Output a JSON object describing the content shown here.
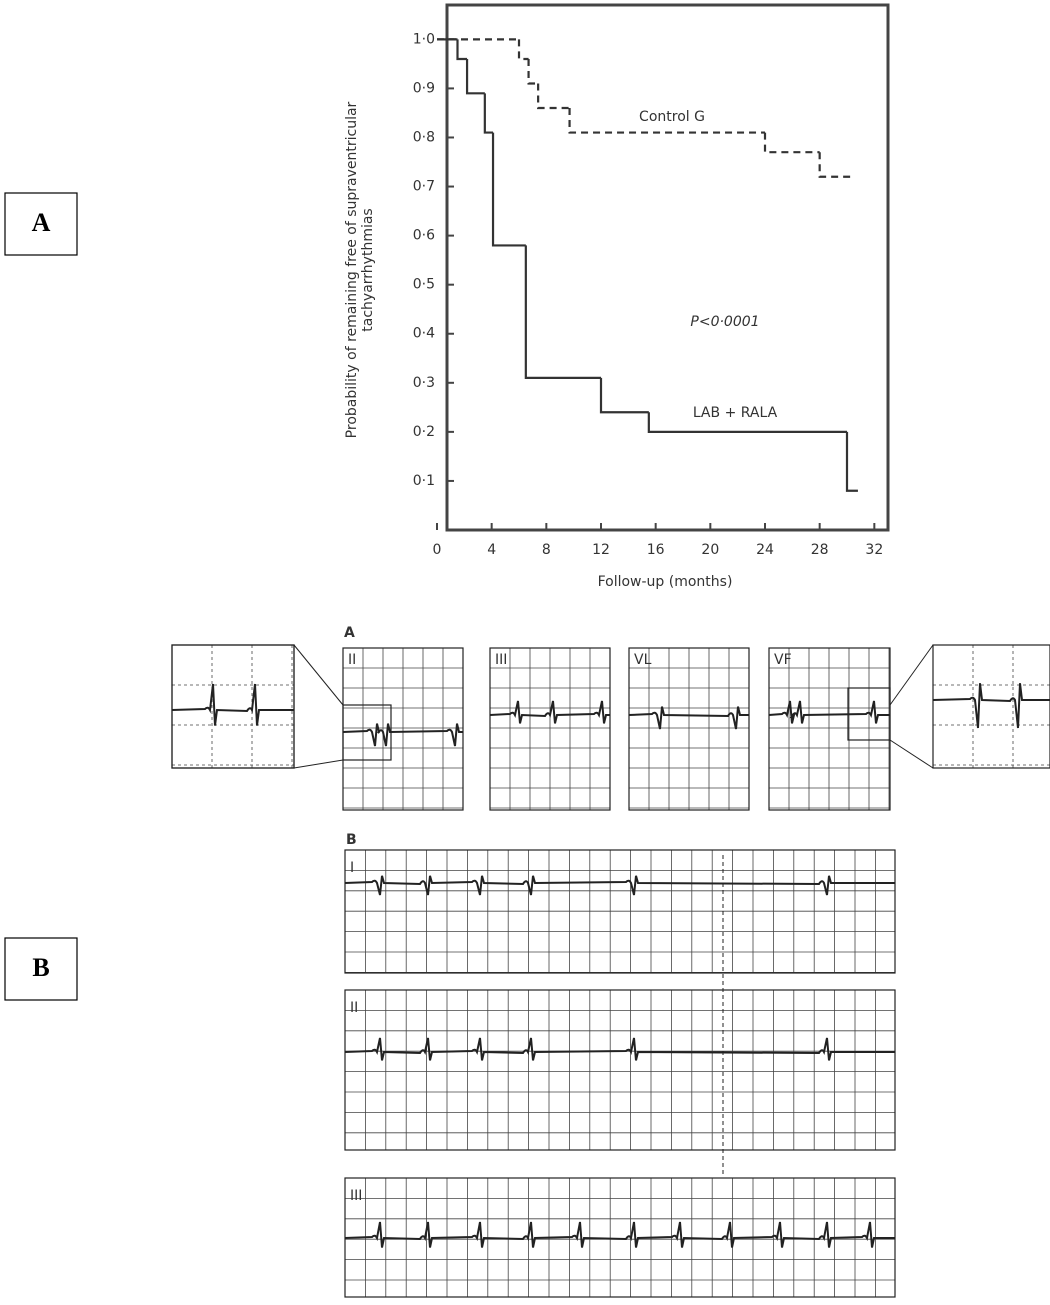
{
  "panel_labels": [
    "A",
    "B"
  ],
  "chart_data": {
    "type": "step",
    "xlabel": "Follow-up (months)",
    "ylabel": [
      "Probability of remaining free of supraventricular",
      "tachyarrhythmias"
    ],
    "xlim": [
      0,
      33
    ],
    "ylim": [
      0,
      1.07
    ],
    "xticks": [
      0,
      4,
      8,
      12,
      16,
      20,
      24,
      28,
      32
    ],
    "yticks": [
      {
        "value": 0.1,
        "label": "0·1"
      },
      {
        "value": 0.2,
        "label": "0·2"
      },
      {
        "value": 0.3,
        "label": "0·3"
      },
      {
        "value": 0.4,
        "label": "0·4"
      },
      {
        "value": 0.5,
        "label": "0·5"
      },
      {
        "value": 0.6,
        "label": "0·6"
      },
      {
        "value": 0.7,
        "label": "0·7"
      },
      {
        "value": 0.8,
        "label": "0·8"
      },
      {
        "value": 0.9,
        "label": "0·9"
      },
      {
        "value": 1.0,
        "label": "1·0"
      }
    ],
    "series": [
      {
        "name": "Control G",
        "color": "#333333",
        "dashed": true,
        "x": [
          0,
          6,
          6.7,
          7.4,
          9.7,
          24,
          28,
          30.5
        ],
        "values": [
          1.0,
          0.96,
          0.91,
          0.86,
          0.81,
          0.77,
          0.72,
          0.72
        ]
      },
      {
        "name": "LAB + RALA",
        "color": "#333333",
        "dashed": false,
        "x": [
          0,
          1.5,
          2.2,
          3.5,
          4.1,
          6.5,
          12,
          15.5,
          30,
          30.8
        ],
        "values": [
          1.0,
          0.96,
          0.89,
          0.81,
          0.58,
          0.31,
          0.24,
          0.2,
          0.08,
          0.08
        ]
      }
    ],
    "annotation": "P<0·0001"
  },
  "ecg": {
    "panel_a": {
      "label": "A",
      "leads": [
        "II",
        "III",
        "VL",
        "VF"
      ]
    },
    "panel_b": {
      "label": "B",
      "leads": [
        "I",
        "II",
        "III"
      ]
    }
  }
}
